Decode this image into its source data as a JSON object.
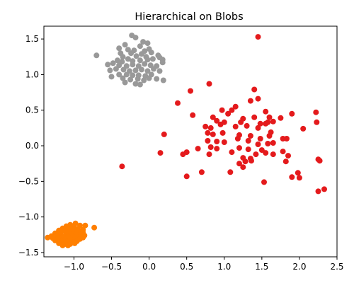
{
  "chart_data": {
    "type": "scatter",
    "title": "Hierarchical on Blobs",
    "xlabel": "",
    "ylabel": "",
    "xlim": [
      -1.4,
      2.5
    ],
    "ylim": [
      -1.56,
      1.68
    ],
    "xticks": [
      -1.0,
      -0.5,
      0.0,
      0.5,
      1.0,
      1.5,
      2.0,
      2.5
    ],
    "xtick_labels": [
      "−1.0",
      "−0.5",
      "0.0",
      "0.5",
      "1.0",
      "1.5",
      "2.0",
      "2.5"
    ],
    "yticks": [
      -1.5,
      -1.0,
      -0.5,
      0.0,
      0.5,
      1.0,
      1.5
    ],
    "ytick_labels": [
      "−1.5",
      "−1.0",
      "−0.5",
      "0.0",
      "0.5",
      "1.0",
      "1.5"
    ],
    "grid": false,
    "legend": "none",
    "series": [
      {
        "color": "#e41a1c",
        "points": [
          [
            1.45,
            1.53
          ],
          [
            0.8,
            0.87
          ],
          [
            0.55,
            0.77
          ],
          [
            1.4,
            0.79
          ],
          [
            1.15,
            0.55
          ],
          [
            1.45,
            0.66
          ],
          [
            0.38,
            0.6
          ],
          [
            0.97,
            0.5
          ],
          [
            1.1,
            0.5
          ],
          [
            1.35,
            0.63
          ],
          [
            1.55,
            0.48
          ],
          [
            1.9,
            0.45
          ],
          [
            2.22,
            0.47
          ],
          [
            0.58,
            0.43
          ],
          [
            0.85,
            0.4
          ],
          [
            1.05,
            0.45
          ],
          [
            1.25,
            0.38
          ],
          [
            1.4,
            0.4
          ],
          [
            1.6,
            0.4
          ],
          [
            1.75,
            0.39
          ],
          [
            2.23,
            0.33
          ],
          [
            0.9,
            0.35
          ],
          [
            1.0,
            0.33
          ],
          [
            1.22,
            0.33
          ],
          [
            1.48,
            0.31
          ],
          [
            1.58,
            0.33
          ],
          [
            1.65,
            0.34
          ],
          [
            0.75,
            0.27
          ],
          [
            0.82,
            0.25
          ],
          [
            0.95,
            0.3
          ],
          [
            1.15,
            0.27
          ],
          [
            1.3,
            0.28
          ],
          [
            1.45,
            0.25
          ],
          [
            1.55,
            0.31
          ],
          [
            2.05,
            0.24
          ],
          [
            0.2,
            0.16
          ],
          [
            0.78,
            0.18
          ],
          [
            0.85,
            0.16
          ],
          [
            0.98,
            0.18
          ],
          [
            1.2,
            0.15
          ],
          [
            1.35,
            0.14
          ],
          [
            1.48,
            0.1
          ],
          [
            1.62,
            0.19
          ],
          [
            1.6,
            0.14
          ],
          [
            1.78,
            0.1
          ],
          [
            0.78,
            0.07
          ],
          [
            0.9,
            0.06
          ],
          [
            1.0,
            0.05
          ],
          [
            1.18,
            0.1
          ],
          [
            1.32,
            0.07
          ],
          [
            1.45,
            0.02
          ],
          [
            1.58,
            0.03
          ],
          [
            1.65,
            0.04
          ],
          [
            1.83,
            0.1
          ],
          [
            0.65,
            -0.04
          ],
          [
            0.82,
            -0.02
          ],
          [
            0.9,
            -0.04
          ],
          [
            1.1,
            -0.09
          ],
          [
            1.2,
            -0.03
          ],
          [
            1.32,
            -0.05
          ],
          [
            1.5,
            -0.06
          ],
          [
            1.55,
            -0.1
          ],
          [
            1.65,
            -0.12
          ],
          [
            1.78,
            -0.08
          ],
          [
            0.15,
            -0.1
          ],
          [
            0.45,
            -0.12
          ],
          [
            0.5,
            -0.09
          ],
          [
            0.8,
            -0.12
          ],
          [
            1.25,
            -0.17
          ],
          [
            1.35,
            -0.18
          ],
          [
            1.42,
            -0.12
          ],
          [
            1.85,
            -0.14
          ],
          [
            1.2,
            -0.25
          ],
          [
            1.28,
            -0.22
          ],
          [
            1.36,
            -0.21
          ],
          [
            1.82,
            -0.22
          ],
          [
            2.25,
            -0.19
          ],
          [
            2.27,
            -0.21
          ],
          [
            -0.36,
            -0.29
          ],
          [
            0.7,
            -0.37
          ],
          [
            1.08,
            -0.37
          ],
          [
            1.25,
            -0.3
          ],
          [
            1.98,
            -0.38
          ],
          [
            0.5,
            -0.43
          ],
          [
            1.9,
            -0.44
          ],
          [
            2.0,
            -0.45
          ],
          [
            1.53,
            -0.51
          ],
          [
            2.33,
            -0.61
          ],
          [
            2.25,
            -0.64
          ]
        ]
      },
      {
        "color": "#999999",
        "points": [
          [
            -0.23,
            1.55
          ],
          [
            -0.18,
            1.52
          ],
          [
            -0.08,
            1.46
          ],
          [
            -0.02,
            1.44
          ],
          [
            -0.32,
            1.42
          ],
          [
            -0.12,
            1.4
          ],
          [
            0.0,
            1.36
          ],
          [
            -0.4,
            1.37
          ],
          [
            -0.28,
            1.35
          ],
          [
            -0.2,
            1.34
          ],
          [
            -0.06,
            1.33
          ],
          [
            0.03,
            1.31
          ],
          [
            -0.7,
            1.27
          ],
          [
            -0.38,
            1.3
          ],
          [
            -0.24,
            1.3
          ],
          [
            -0.1,
            1.29
          ],
          [
            -0.35,
            1.25
          ],
          [
            -0.28,
            1.22
          ],
          [
            -0.17,
            1.26
          ],
          [
            -0.04,
            1.25
          ],
          [
            0.12,
            1.27
          ],
          [
            -0.42,
            1.2
          ],
          [
            -0.36,
            1.18
          ],
          [
            -0.22,
            1.19
          ],
          [
            -0.12,
            1.2
          ],
          [
            -0.02,
            1.21
          ],
          [
            0.05,
            1.22
          ],
          [
            0.18,
            1.21
          ],
          [
            0.14,
            1.24
          ],
          [
            -0.55,
            1.14
          ],
          [
            -0.48,
            1.16
          ],
          [
            -0.4,
            1.13
          ],
          [
            -0.3,
            1.12
          ],
          [
            -0.22,
            1.14
          ],
          [
            -0.14,
            1.12
          ],
          [
            -0.06,
            1.15
          ],
          [
            0.02,
            1.13
          ],
          [
            0.1,
            1.12
          ],
          [
            0.18,
            1.17
          ],
          [
            -0.52,
            1.06
          ],
          [
            -0.44,
            1.08
          ],
          [
            -0.34,
            1.07
          ],
          [
            -0.26,
            1.05
          ],
          [
            -0.18,
            1.06
          ],
          [
            -0.1,
            1.07
          ],
          [
            -0.02,
            1.05
          ],
          [
            0.06,
            1.08
          ],
          [
            0.14,
            1.05
          ],
          [
            -0.4,
            1.0
          ],
          [
            -0.3,
            1.0
          ],
          [
            -0.22,
            0.99
          ],
          [
            -0.14,
            0.99
          ],
          [
            -0.05,
            0.98
          ],
          [
            0.03,
            1.0
          ],
          [
            -0.5,
            0.97
          ],
          [
            -0.35,
            0.95
          ],
          [
            -0.25,
            0.93
          ],
          [
            -0.15,
            0.94
          ],
          [
            -0.07,
            0.92
          ],
          [
            0.0,
            0.95
          ],
          [
            0.1,
            0.94
          ],
          [
            0.19,
            0.92
          ],
          [
            -0.32,
            0.89
          ],
          [
            -0.18,
            0.87
          ],
          [
            -0.12,
            0.86
          ]
        ]
      },
      {
        "color": "#ff7f00",
        "points": [
          [
            -0.98,
            -1.09
          ],
          [
            -1.05,
            -1.11
          ],
          [
            -1.1,
            -1.13
          ],
          [
            -1.0,
            -1.13
          ],
          [
            -0.92,
            -1.12
          ],
          [
            -0.85,
            -1.12
          ],
          [
            -1.15,
            -1.16
          ],
          [
            -1.08,
            -1.17
          ],
          [
            -1.02,
            -1.16
          ],
          [
            -0.95,
            -1.17
          ],
          [
            -0.88,
            -1.18
          ],
          [
            -0.73,
            -1.15
          ],
          [
            -1.2,
            -1.19
          ],
          [
            -1.13,
            -1.2
          ],
          [
            -1.06,
            -1.21
          ],
          [
            -1.0,
            -1.2
          ],
          [
            -0.94,
            -1.21
          ],
          [
            -0.88,
            -1.22
          ],
          [
            -1.25,
            -1.23
          ],
          [
            -1.18,
            -1.24
          ],
          [
            -1.1,
            -1.24
          ],
          [
            -1.04,
            -1.25
          ],
          [
            -0.97,
            -1.24
          ],
          [
            -0.91,
            -1.25
          ],
          [
            -0.86,
            -1.26
          ],
          [
            -1.3,
            -1.27
          ],
          [
            -1.22,
            -1.27
          ],
          [
            -1.15,
            -1.28
          ],
          [
            -1.08,
            -1.28
          ],
          [
            -1.01,
            -1.28
          ],
          [
            -0.94,
            -1.29
          ],
          [
            -0.88,
            -1.29
          ],
          [
            -1.35,
            -1.29
          ],
          [
            -1.28,
            -1.3
          ],
          [
            -1.2,
            -1.31
          ],
          [
            -1.12,
            -1.32
          ],
          [
            -1.05,
            -1.31
          ],
          [
            -0.98,
            -1.32
          ],
          [
            -0.92,
            -1.31
          ],
          [
            -1.25,
            -1.33
          ],
          [
            -1.17,
            -1.34
          ],
          [
            -1.1,
            -1.35
          ],
          [
            -1.03,
            -1.35
          ],
          [
            -0.96,
            -1.34
          ],
          [
            -1.2,
            -1.37
          ],
          [
            -1.12,
            -1.38
          ],
          [
            -1.05,
            -1.38
          ],
          [
            -0.99,
            -1.37
          ],
          [
            -1.15,
            -1.4
          ],
          [
            -1.08,
            -1.4
          ]
        ]
      }
    ]
  }
}
